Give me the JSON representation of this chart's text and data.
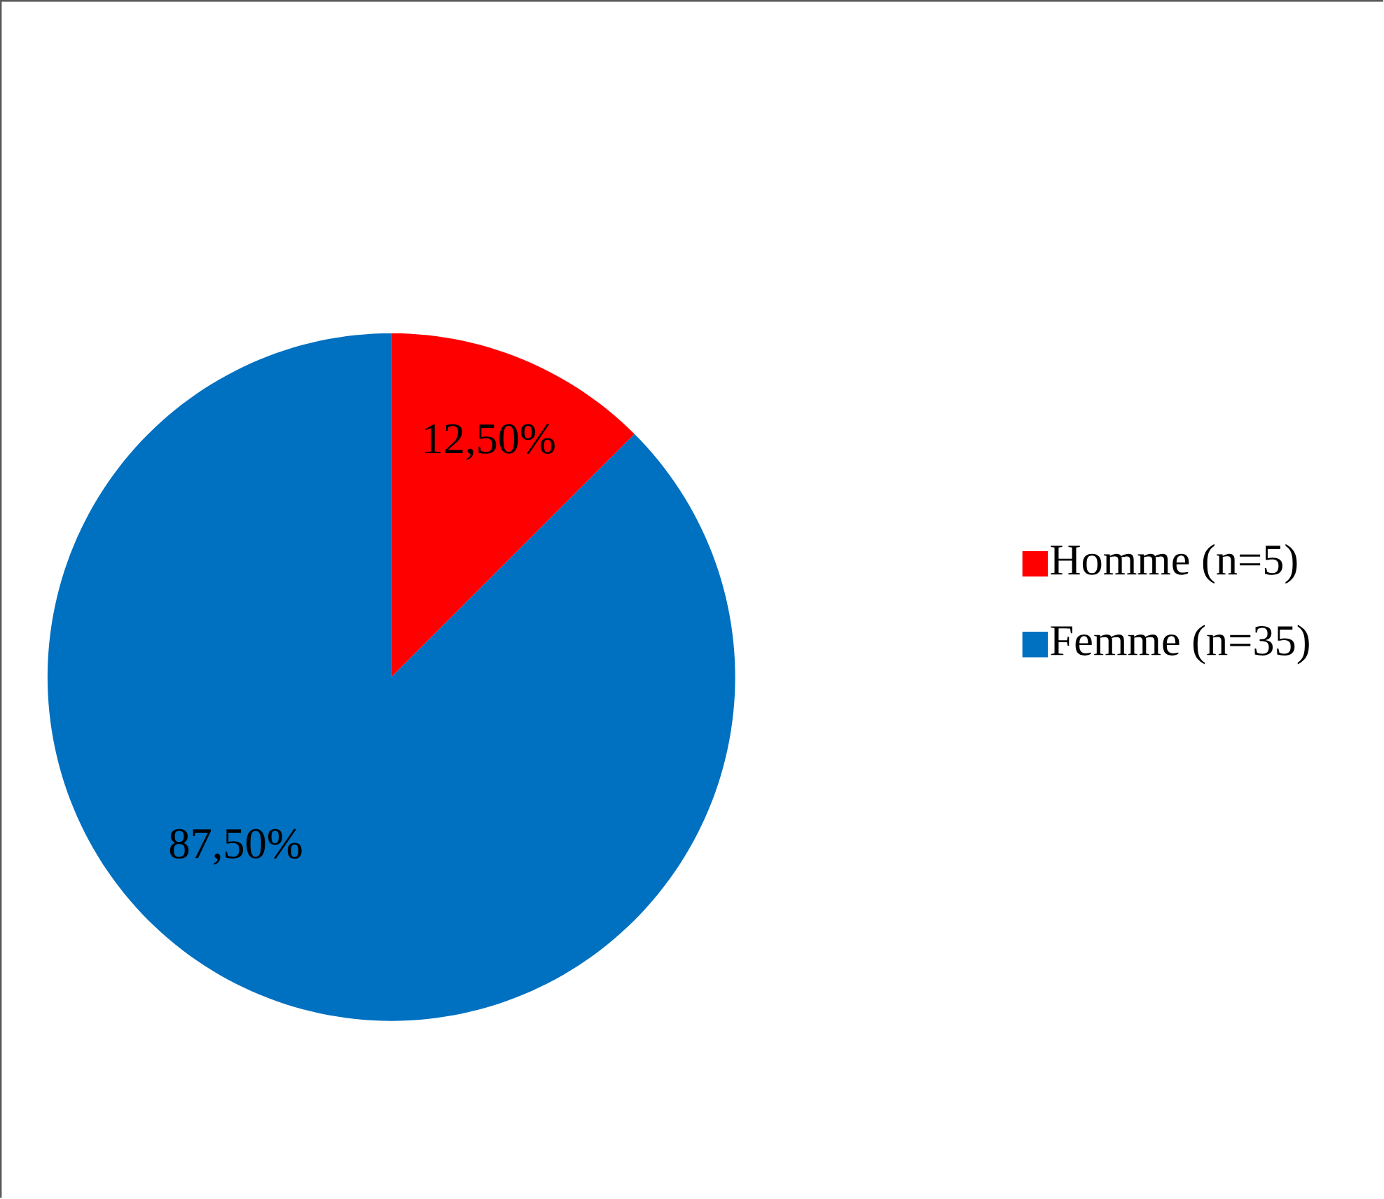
{
  "chart_data": {
    "type": "pie",
    "categories": [
      "Homme (n=5)",
      "Femme (n=35)"
    ],
    "values": [
      12.5,
      87.5
    ],
    "colors": [
      "#ff0000",
      "#0070c0"
    ],
    "value_labels": [
      "12,50%",
      "87,50%"
    ],
    "legend": "right"
  }
}
